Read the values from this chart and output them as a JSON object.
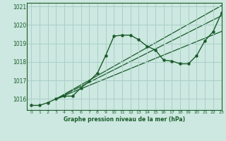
{
  "title": "Graphe pression niveau de la mer (hPa)",
  "background_color": "#cce8e0",
  "grid_color": "#aacfc8",
  "line_color": "#1a5c2a",
  "xlim": [
    -0.5,
    23
  ],
  "ylim": [
    1015.4,
    1021.2
  ],
  "xticks": [
    0,
    1,
    2,
    3,
    4,
    5,
    6,
    7,
    8,
    9,
    10,
    11,
    12,
    13,
    14,
    15,
    16,
    17,
    18,
    19,
    20,
    21,
    22,
    23
  ],
  "yticks": [
    1016,
    1017,
    1018,
    1019,
    1020,
    1021
  ],
  "main_series": {
    "x": [
      0,
      1,
      2,
      3,
      4,
      5,
      6,
      7,
      8,
      9,
      10,
      11,
      12,
      13,
      14,
      15,
      16,
      17,
      18,
      19,
      20,
      21,
      22,
      23
    ],
    "y": [
      1015.65,
      1015.65,
      1015.8,
      1016.0,
      1016.15,
      1016.15,
      1016.6,
      1016.95,
      1017.4,
      1018.35,
      1019.4,
      1019.45,
      1019.45,
      1019.2,
      1018.85,
      1018.65,
      1018.1,
      1018.05,
      1017.9,
      1017.9,
      1018.35,
      1019.15,
      1019.65,
      1020.65
    ]
  },
  "straight_lines": [
    {
      "x": [
        3,
        23
      ],
      "y": [
        1016.0,
        1021.05
      ]
    },
    {
      "x": [
        3,
        23
      ],
      "y": [
        1016.0,
        1020.5
      ]
    },
    {
      "x": [
        3,
        23
      ],
      "y": [
        1016.0,
        1019.65
      ]
    }
  ]
}
